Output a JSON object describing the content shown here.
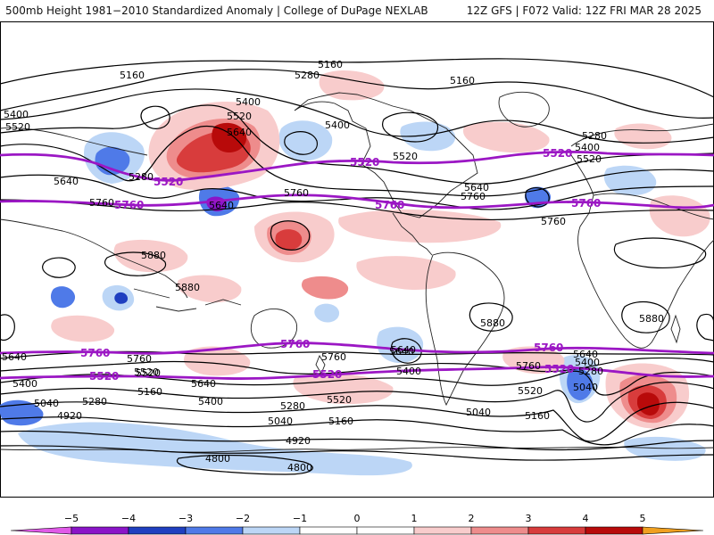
{
  "header": {
    "title_left": "500mb Height 1981−2010 Standardized Anomaly | College of DuPage NEXLAB",
    "title_right": "12Z GFS | F072 Valid: 12Z FRI MAR 28 2025"
  },
  "colors": {
    "neg5": "#e05ae8",
    "neg4": "#8a14c8",
    "neg3": "#1f3fc0",
    "neg2": "#4f7ae8",
    "neg1": "#bcd6f6",
    "pos1": "#f8cccc",
    "pos2": "#ee8c8c",
    "pos3": "#d83c3c",
    "pos4": "#b80a0a",
    "pos5": "#f0a020",
    "contour": "#000000",
    "highlight": "#9b17c4"
  },
  "contour_labels": [
    {
      "text": "5160"
    },
    {
      "text": "5280"
    },
    {
      "text": "5160"
    },
    {
      "text": "5160"
    },
    {
      "text": "5400"
    },
    {
      "text": "5520"
    },
    {
      "text": "5640"
    },
    {
      "text": "5400"
    },
    {
      "text": "5520"
    },
    {
      "text": "5280"
    },
    {
      "text": "5400"
    },
    {
      "text": "5640"
    },
    {
      "text": "5520"
    },
    {
      "text": "5640"
    },
    {
      "text": "5760"
    },
    {
      "text": "5760"
    },
    {
      "text": "5640"
    },
    {
      "text": "5760"
    },
    {
      "text": "5280"
    },
    {
      "text": "5400"
    },
    {
      "text": "5520"
    },
    {
      "text": "5760"
    },
    {
      "text": "5880"
    },
    {
      "text": "5880"
    },
    {
      "text": "5880"
    },
    {
      "text": "5880"
    },
    {
      "text": "5640"
    },
    {
      "text": "5400"
    },
    {
      "text": "5520"
    },
    {
      "text": "5640"
    },
    {
      "text": "5760"
    },
    {
      "text": "5520"
    },
    {
      "text": "5640"
    },
    {
      "text": "5400"
    },
    {
      "text": "5160"
    },
    {
      "text": "5280"
    },
    {
      "text": "5040"
    },
    {
      "text": "4920"
    },
    {
      "text": "5280"
    },
    {
      "text": "5040"
    },
    {
      "text": "5160"
    },
    {
      "text": "4920"
    },
    {
      "text": "4800"
    },
    {
      "text": "4800"
    },
    {
      "text": "5640"
    },
    {
      "text": "5400"
    },
    {
      "text": "5760"
    },
    {
      "text": "5520"
    },
    {
      "text": "5640"
    },
    {
      "text": "5400"
    },
    {
      "text": "5280"
    },
    {
      "text": "5040"
    },
    {
      "text": "5160"
    },
    {
      "text": "5040"
    },
    {
      "text": "5520"
    },
    {
      "text": "5760"
    }
  ],
  "highlight_labels": [
    {
      "text": "5520"
    },
    {
      "text": "5520"
    },
    {
      "text": "5520"
    },
    {
      "text": "5760"
    },
    {
      "text": "5760"
    },
    {
      "text": "5760"
    },
    {
      "text": "5760"
    },
    {
      "text": "5760"
    },
    {
      "text": "5760"
    },
    {
      "text": "5520"
    },
    {
      "text": "5520"
    },
    {
      "text": "5520"
    }
  ],
  "colorbar": {
    "ticks": [
      "−5",
      "−4",
      "−3",
      "−2",
      "−1",
      "0",
      "1",
      "2",
      "3",
      "4",
      "5"
    ]
  }
}
